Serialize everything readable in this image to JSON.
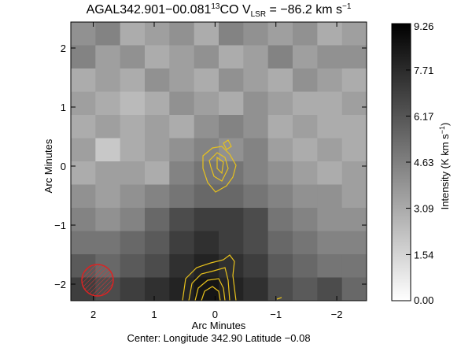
{
  "chart_data": {
    "type": "image",
    "title": {
      "source": "AGAL342.901−00.081",
      "isotope": "13",
      "molecule": "CO V",
      "velocity_sub": "LSR",
      "velocity": " = −86.2 km s",
      "exp": "−1"
    },
    "xlabel": "Arc Minutes",
    "ylabel": "Arc Minutes",
    "footer": "Center:  Longitude 342.90 Latitude −0.08",
    "xlim": [
      2.37,
      -2.49
    ],
    "ylim": [
      -2.28,
      2.44
    ],
    "xticks": [
      2,
      1,
      0,
      {
        "value": -1,
        "label": "−1"
      },
      {
        "value": -2,
        "label": "−2"
      }
    ],
    "yticks": [
      {
        "value": -2,
        "label": "−2"
      },
      {
        "value": -1,
        "label": "−1"
      },
      0,
      1,
      2
    ],
    "colorbar": {
      "label": "Intensity (K km s",
      "exp": "−1",
      "close": ")",
      "zlim": [
        0,
        9.26
      ],
      "ticks": [
        {
          "value": 0,
          "label": "0.00"
        },
        1.54,
        3.09,
        4.63,
        6.17,
        7.71,
        9.26
      ]
    },
    "image": [
      [
        4,
        4.5,
        3,
        3.5,
        4,
        3,
        4.5,
        4,
        3.5,
        4,
        3,
        3.5
      ],
      [
        4.5,
        3.5,
        4,
        3,
        3.5,
        4,
        3,
        3.5,
        4.5,
        3.5,
        4,
        4
      ],
      [
        3,
        3.5,
        3,
        4,
        3.5,
        3,
        4,
        3.5,
        3,
        4,
        3.5,
        3
      ],
      [
        3.5,
        3,
        2.5,
        3,
        4,
        3.5,
        3,
        4,
        3.5,
        3,
        3,
        3.5
      ],
      [
        3,
        3.5,
        3,
        3.5,
        3,
        4,
        4.5,
        4,
        3,
        3.5,
        3,
        3
      ],
      [
        3.5,
        2,
        3,
        3.5,
        4,
        4.5,
        4,
        4.5,
        3.5,
        3,
        3.5,
        3
      ],
      [
        3,
        3.5,
        3.5,
        3,
        4.5,
        5,
        5,
        4.5,
        4,
        3.5,
        3,
        3.5
      ],
      [
        4,
        3.5,
        4,
        4.5,
        5,
        5.5,
        5.5,
        5,
        4.5,
        4,
        4,
        3.5
      ],
      [
        4.5,
        4,
        4.5,
        5.5,
        6.5,
        7,
        7,
        6.5,
        5,
        4.5,
        4,
        4
      ],
      [
        5,
        5,
        5.5,
        6,
        7,
        7.5,
        7,
        6.5,
        5.5,
        5,
        4.5,
        4.5
      ],
      [
        6,
        5.5,
        6,
        6.5,
        7.5,
        8,
        7.5,
        7,
        6,
        5.5,
        5,
        5
      ],
      [
        7,
        6.5,
        7,
        7.5,
        8,
        8.5,
        8,
        7.5,
        6.5,
        6,
        6.5,
        5.5
      ]
    ]
  }
}
